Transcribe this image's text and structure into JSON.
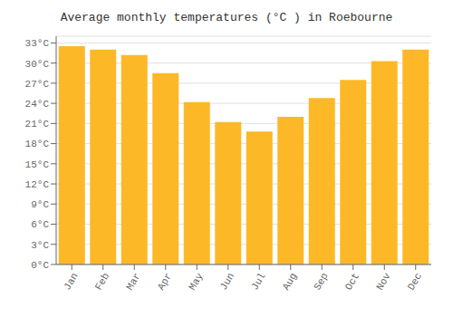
{
  "chart_data": {
    "type": "bar",
    "title": "Average monthly temperatures (°C ) in Roebourne",
    "categories": [
      "Jan",
      "Feb",
      "Mar",
      "Apr",
      "May",
      "Jun",
      "Jul",
      "Aug",
      "Sep",
      "Oct",
      "Nov",
      "Dec"
    ],
    "values": [
      32.5,
      32.0,
      31.2,
      28.5,
      24.2,
      21.2,
      19.8,
      22.0,
      24.8,
      27.5,
      30.3,
      32.0
    ],
    "color": "#FDB827",
    "ylim": [
      0,
      34
    ],
    "yticks": [
      {
        "value": 0,
        "label": "0°C"
      },
      {
        "value": 3,
        "label": "3°C"
      },
      {
        "value": 6,
        "label": "6°C"
      },
      {
        "value": 9,
        "label": "9°C"
      },
      {
        "value": 12,
        "label": "12°C"
      },
      {
        "value": 15,
        "label": "15°C"
      },
      {
        "value": 18,
        "label": "18°C"
      },
      {
        "value": 21,
        "label": "21°C"
      },
      {
        "value": 24,
        "label": "24°C"
      },
      {
        "value": 27,
        "label": "27°C"
      },
      {
        "value": 30,
        "label": "30°C"
      },
      {
        "value": 33,
        "label": "33°C"
      }
    ],
    "grid": true
  }
}
